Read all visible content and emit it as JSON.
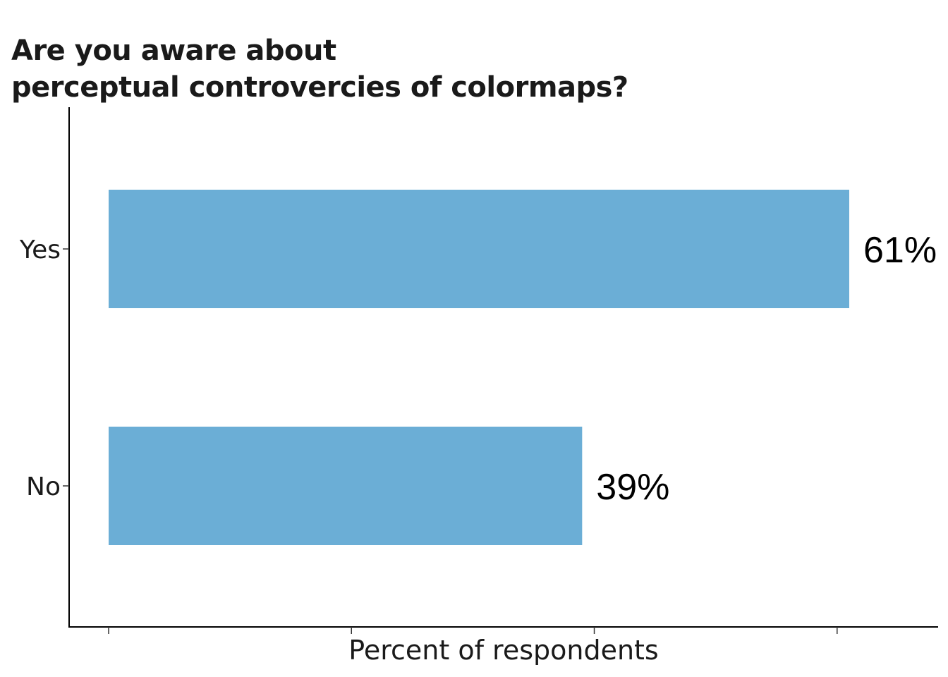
{
  "chart_data": {
    "type": "bar",
    "orientation": "horizontal",
    "title_lines": [
      "Are you aware about",
      "perceptual controvercies of colormaps?"
    ],
    "xlabel": "Percent of respondents",
    "ylabel": "",
    "categories": [
      "Yes",
      "No"
    ],
    "values": [
      61,
      39
    ],
    "value_labels": [
      "61%",
      "39%"
    ],
    "bar_color": "#6baed6",
    "xlim": [
      0,
      68
    ],
    "x_ticks": [
      0,
      20,
      40,
      60
    ],
    "x_tick_labels_shown": false,
    "grid": false,
    "legend": "none"
  }
}
